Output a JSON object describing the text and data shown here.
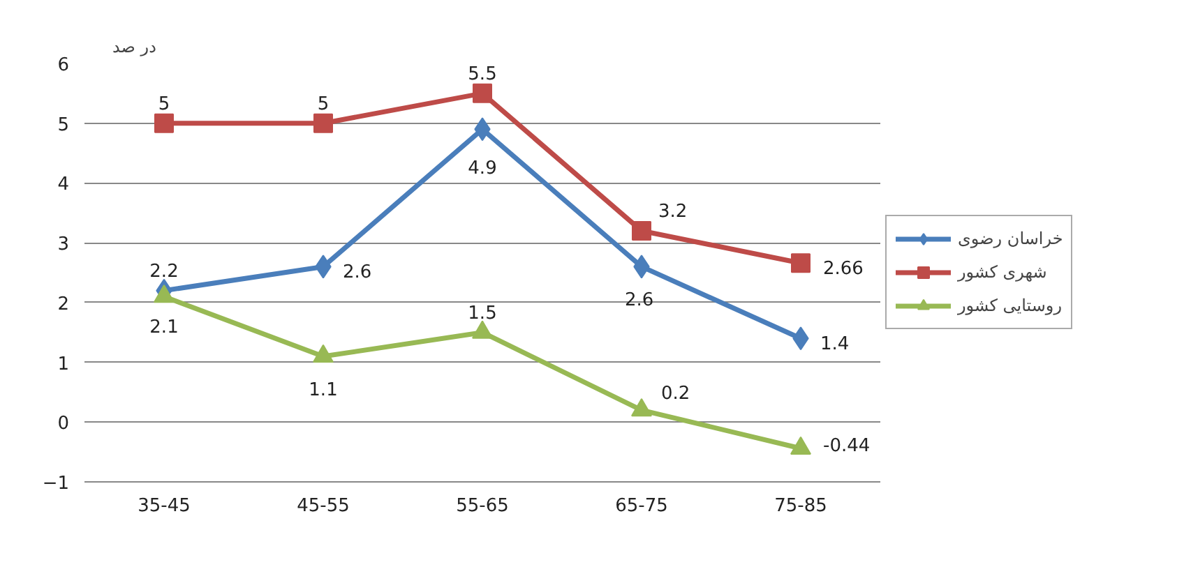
{
  "chart_data": {
    "type": "line",
    "ylabel": "در صد",
    "categories": [
      "35-45",
      "45-55",
      "55-65",
      "65-75",
      "75-85"
    ],
    "series": [
      {
        "name": "خراسان رضوی",
        "color": "#4a7ebb",
        "marker": "diamond",
        "values": [
          2.2,
          2.6,
          4.9,
          2.6,
          1.4
        ]
      },
      {
        "name": "شهری کشور",
        "color": "#be4b48",
        "marker": "square",
        "values": [
          5,
          5,
          5.5,
          3.2,
          2.66
        ]
      },
      {
        "name": "روستایی کشور",
        "color": "#98b954",
        "marker": "triangle",
        "values": [
          2.1,
          1.1,
          1.5,
          0.2,
          -0.44
        ]
      }
    ],
    "ylim": [
      -1,
      6
    ],
    "yticks": [
      -1,
      0,
      1,
      2,
      3,
      4,
      5,
      6
    ],
    "grid": "y",
    "legend": "right",
    "data_labels": true
  }
}
